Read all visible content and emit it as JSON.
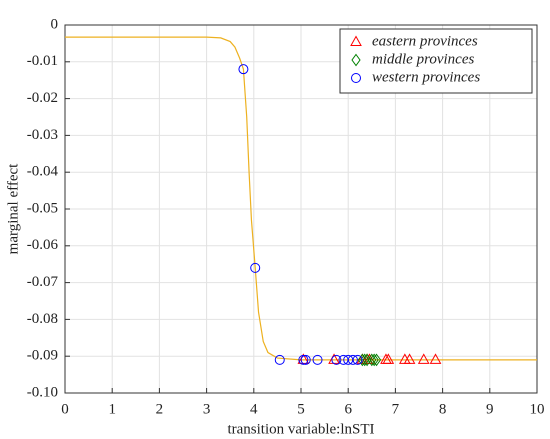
{
  "chart_data": {
    "type": "scatter",
    "xlabel": "transition variable:lnSTI",
    "ylabel": "marginal effect",
    "xlim": [
      0,
      10
    ],
    "xticks": [
      0,
      1,
      2,
      3,
      4,
      5,
      6,
      7,
      8,
      9,
      10
    ],
    "ylim": [
      -0.1,
      0
    ],
    "yticks": [
      0,
      -0.01,
      -0.02,
      -0.03,
      -0.04,
      -0.05,
      -0.06,
      -0.07,
      -0.08,
      -0.09,
      {
        "value": -0.1,
        "label": "-0.10"
      }
    ],
    "grid": true,
    "legend": "upper right",
    "series": [
      {
        "marker": "line",
        "color": "#edb120",
        "x": [
          0,
          3.0,
          3.3,
          3.5,
          3.6,
          3.7,
          3.78,
          3.85,
          3.9,
          3.95,
          4.03,
          4.1,
          4.2,
          4.3,
          4.5,
          5,
          10
        ],
        "values": [
          -0.0033,
          -0.0033,
          -0.0035,
          -0.0045,
          -0.006,
          -0.009,
          -0.012,
          -0.025,
          -0.04,
          -0.053,
          -0.066,
          -0.078,
          -0.086,
          -0.089,
          -0.0905,
          -0.091,
          -0.091
        ]
      },
      {
        "name": "eastern provinces",
        "marker": "triangle",
        "color": "#ff0000",
        "x": [
          5.05,
          5.7,
          6.3,
          6.4,
          6.45,
          6.8,
          6.85,
          7.2,
          7.3,
          7.6,
          7.85
        ],
        "values": [
          -0.091,
          -0.091,
          -0.091,
          -0.091,
          -0.091,
          -0.091,
          -0.091,
          -0.091,
          -0.091,
          -0.091,
          -0.091
        ]
      },
      {
        "name": "middle provinces",
        "marker": "diamond",
        "color": "#008000",
        "x": [
          6.3,
          6.35,
          6.4,
          6.5,
          6.55,
          6.6
        ],
        "values": [
          -0.091,
          -0.091,
          -0.091,
          -0.091,
          -0.091,
          -0.091
        ]
      },
      {
        "name": "western provinces",
        "marker": "circle",
        "color": "#0000ff",
        "x": [
          3.78,
          4.03,
          4.55,
          5.05,
          5.1,
          5.35,
          5.75,
          5.9,
          6.0,
          6.1,
          6.2
        ],
        "values": [
          -0.012,
          -0.066,
          -0.091,
          -0.091,
          -0.091,
          -0.091,
          -0.091,
          -0.091,
          -0.091,
          -0.091,
          -0.091
        ]
      }
    ]
  }
}
